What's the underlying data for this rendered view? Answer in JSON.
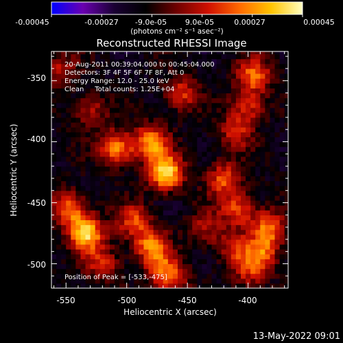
{
  "colorbar": {
    "tick_labels": [
      "-0.00045",
      "-0.00027",
      "-9.0e-05",
      "9.0e-05",
      "0.00027",
      "0.00045"
    ],
    "range": [
      -0.00045,
      0.00045
    ],
    "unit_label": "(photons cm⁻² s⁻¹ asec⁻²)",
    "colormap": [
      "#0000ff",
      "#6a00b0",
      "#1a0033",
      "#000000",
      "#700000",
      "#d01000",
      "#ff6a00",
      "#ffc400",
      "#ffffc0"
    ]
  },
  "chart_data": {
    "type": "heatmap",
    "title": "Reconstructed RHESSI Image",
    "xlabel": "Heliocentric X (arcsec)",
    "ylabel": "Heliocentric Y (arcsec)",
    "xlim": [
      -562,
      -367
    ],
    "ylim": [
      -520,
      -326
    ],
    "x_ticks": [
      -550,
      -500,
      -450,
      -400
    ],
    "y_ticks": [
      -350,
      -400,
      -450,
      -500
    ],
    "info_lines": [
      "20-Aug-2011 00:39:04.000 to 00:45:04.000",
      "Detectors: 3F 4F 5F 6F 7F 8F, Att 0",
      "Energy Range: 12.0 - 25.0 keV",
      "Clean     Total counts: 1.25E+04"
    ],
    "peak_text": "Position of Peak = [-533,-475]",
    "peak_position": [
      -533,
      -475
    ],
    "blobs": [
      {
        "x": -468,
        "y": -425,
        "value": 0.00045
      },
      {
        "x": -480,
        "y": -400,
        "value": 0.00033
      },
      {
        "x": -508,
        "y": -405,
        "value": 0.00032
      },
      {
        "x": -533,
        "y": -475,
        "value": 0.0004
      },
      {
        "x": -547,
        "y": -455,
        "value": 0.0003
      },
      {
        "x": -495,
        "y": -465,
        "value": 0.00024
      },
      {
        "x": -480,
        "y": -485,
        "value": 0.0003
      },
      {
        "x": -470,
        "y": -505,
        "value": 0.00022
      },
      {
        "x": -520,
        "y": -500,
        "value": 0.0002
      },
      {
        "x": -455,
        "y": -360,
        "value": 0.00022
      },
      {
        "x": -395,
        "y": -345,
        "value": 0.00028
      },
      {
        "x": -400,
        "y": -370,
        "value": 0.00022
      },
      {
        "x": -410,
        "y": -392,
        "value": 0.0002
      },
      {
        "x": -420,
        "y": -430,
        "value": 0.00025
      },
      {
        "x": -408,
        "y": -455,
        "value": 0.00026
      },
      {
        "x": -383,
        "y": -470,
        "value": 0.00028
      },
      {
        "x": -388,
        "y": -490,
        "value": 0.00022
      },
      {
        "x": -413,
        "y": -487,
        "value": 0.00018
      },
      {
        "x": -398,
        "y": -505,
        "value": 0.0002
      },
      {
        "x": -435,
        "y": -470,
        "value": 0.00016
      },
      {
        "x": -555,
        "y": -340,
        "value": 0.00016
      },
      {
        "x": -530,
        "y": -375,
        "value": 0.00018
      },
      {
        "x": -460,
        "y": -515,
        "value": 0.00015
      }
    ]
  },
  "timestamp": "13-May-2022 09:01"
}
